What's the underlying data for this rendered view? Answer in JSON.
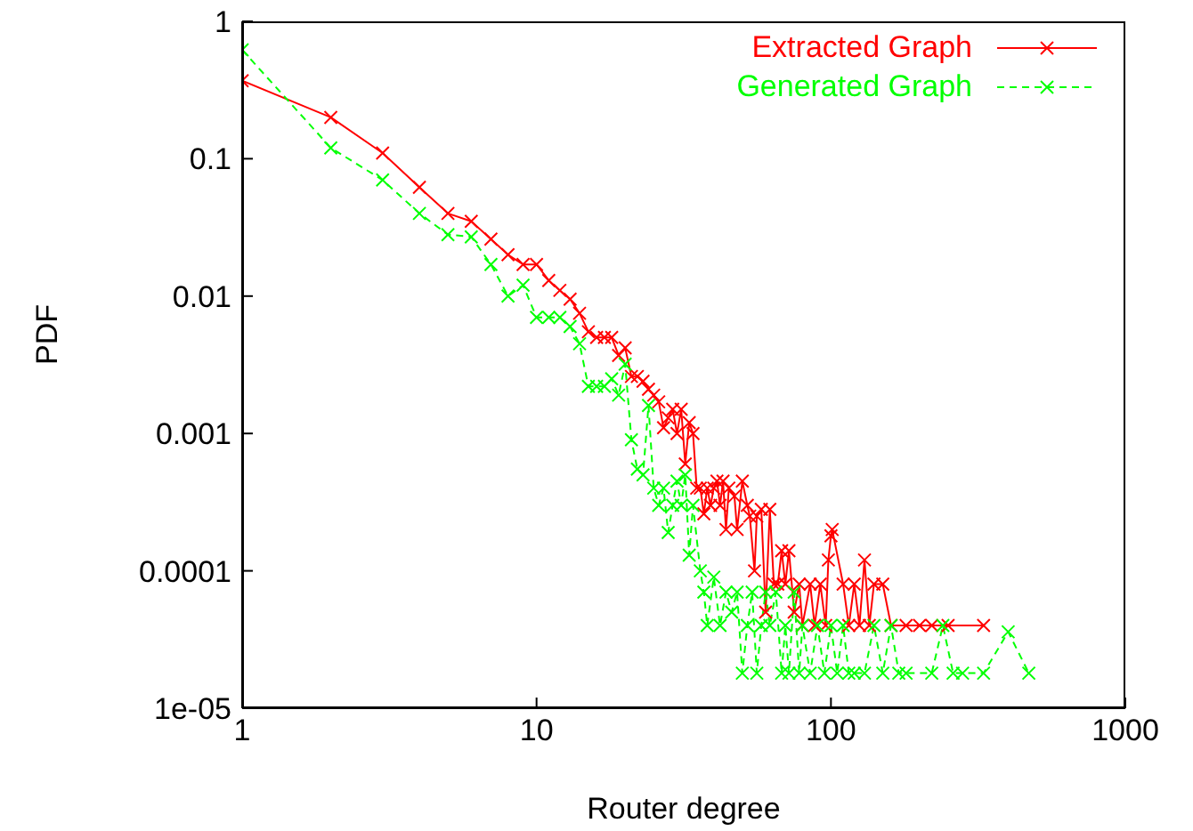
{
  "chart_data": {
    "type": "line",
    "xlabel": "Router degree",
    "ylabel": "PDF",
    "log": "xy",
    "grid": false,
    "legend": "top right",
    "marker": "cross",
    "xlim": [
      1,
      1000
    ],
    "xticks": [
      1,
      10,
      100,
      1000
    ],
    "ylim": [
      1e-05,
      1
    ],
    "yticks": [
      {
        "value": 1e-05,
        "label": "1e-05"
      },
      0.0001,
      0.001,
      0.01,
      0.1,
      1
    ],
    "series": [
      {
        "name": "Extracted Graph",
        "color": "#ff0000",
        "line_style": "solid",
        "x": [
          1,
          2,
          3,
          4,
          5,
          6,
          7,
          8,
          9,
          10,
          11,
          12,
          13,
          14,
          15,
          16,
          17,
          18,
          19,
          20,
          21,
          22,
          23,
          24,
          25,
          26,
          27,
          28,
          29,
          30,
          31,
          32,
          33,
          34,
          35,
          36,
          37,
          38,
          39,
          40,
          41,
          42,
          43,
          44,
          45,
          47,
          48,
          50,
          52,
          53,
          55,
          56,
          58,
          60,
          62,
          64,
          66,
          68,
          70,
          72,
          75,
          78,
          80,
          85,
          88,
          92,
          96,
          98,
          100,
          101,
          110,
          115,
          120,
          125,
          130,
          135,
          140,
          150,
          160,
          180,
          200,
          220,
          250,
          330
        ],
        "values": [
          0.37,
          0.2,
          0.11,
          0.062,
          0.04,
          0.035,
          0.026,
          0.02,
          0.017,
          0.017,
          0.013,
          0.011,
          0.0095,
          0.0075,
          0.0055,
          0.005,
          0.005,
          0.005,
          0.0037,
          0.0042,
          0.0026,
          0.0026,
          0.0024,
          0.0021,
          0.0019,
          0.0017,
          0.0011,
          0.0013,
          0.0015,
          0.001,
          0.0015,
          0.0006,
          0.0012,
          0.001,
          0.0004,
          0.0004,
          0.00026,
          0.0004,
          0.0003,
          0.0004,
          0.00045,
          0.0003,
          0.00045,
          0.0002,
          0.0004,
          0.00035,
          0.0002,
          0.00045,
          0.0003,
          0.00025,
          0.0001,
          0.00025,
          0.00028,
          5e-05,
          0.00028,
          8e-05,
          8e-05,
          0.00014,
          8e-05,
          0.00014,
          5e-05,
          8e-05,
          4e-05,
          8e-05,
          4e-05,
          8e-05,
          4e-05,
          0.00012,
          0.00018,
          0.0002,
          8e-05,
          4e-05,
          8e-05,
          4e-05,
          0.00012,
          4e-05,
          8e-05,
          8e-05,
          4e-05,
          4e-05,
          4e-05,
          4e-05,
          4e-05,
          4e-05
        ]
      },
      {
        "name": "Generated Graph",
        "color": "#00ff00",
        "line_style": "dashed",
        "x": [
          1,
          2,
          3,
          4,
          5,
          6,
          7,
          8,
          9,
          10,
          11,
          12,
          13,
          14,
          15,
          16,
          17,
          18,
          19,
          20,
          21,
          22,
          23,
          24,
          25,
          26,
          27,
          28,
          29,
          30,
          31,
          32,
          33,
          34,
          36,
          37,
          38,
          40,
          42,
          44,
          46,
          48,
          50,
          52,
          54,
          56,
          58,
          60,
          62,
          65,
          68,
          70,
          72,
          75,
          78,
          80,
          85,
          90,
          95,
          100,
          105,
          110,
          115,
          120,
          130,
          140,
          150,
          160,
          170,
          180,
          220,
          240,
          260,
          280,
          330,
          400,
          470
        ],
        "values": [
          0.62,
          0.12,
          0.07,
          0.04,
          0.028,
          0.027,
          0.017,
          0.01,
          0.012,
          0.007,
          0.007,
          0.007,
          0.006,
          0.0045,
          0.0022,
          0.0022,
          0.0022,
          0.0025,
          0.0019,
          0.0032,
          0.0009,
          0.00055,
          0.0005,
          0.0016,
          0.0004,
          0.0003,
          0.0004,
          0.00019,
          0.0003,
          0.00045,
          0.0003,
          0.0005,
          0.00013,
          0.0003,
          0.0001,
          7e-05,
          4e-05,
          9e-05,
          4e-05,
          7e-05,
          5e-05,
          7e-05,
          1.8e-05,
          4e-05,
          7e-05,
          1.8e-05,
          4e-05,
          7e-05,
          4e-05,
          7e-05,
          1.8e-05,
          4e-05,
          1.8e-05,
          7e-05,
          1.8e-05,
          4e-05,
          1.8e-05,
          4e-05,
          1.8e-05,
          4e-05,
          1.8e-05,
          4e-05,
          1.8e-05,
          1.8e-05,
          1.8e-05,
          4e-05,
          1.8e-05,
          4e-05,
          1.8e-05,
          1.8e-05,
          1.8e-05,
          4e-05,
          1.8e-05,
          1.8e-05,
          1.8e-05,
          3.6e-05,
          1.8e-05
        ]
      }
    ]
  }
}
